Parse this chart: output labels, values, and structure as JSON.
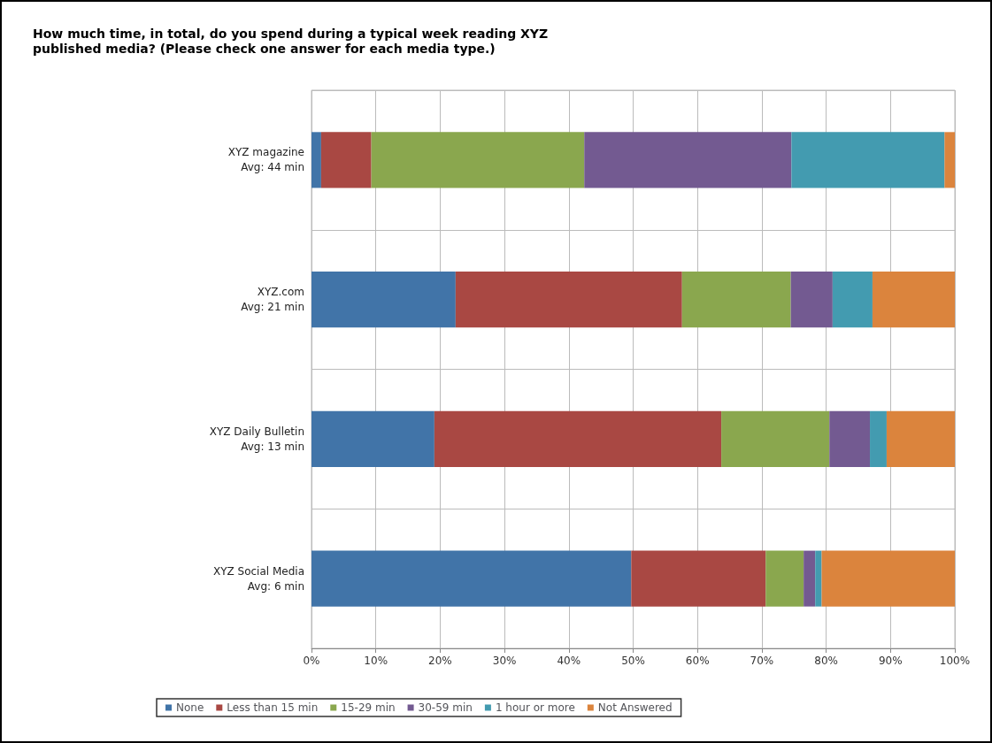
{
  "chart_data": {
    "type": "bar",
    "orientation": "horizontal",
    "stacked": true,
    "title": "How much time, in total, do you spend during a typical week reading XYZ\npublished media? (Please check one answer for each media type.)",
    "categories": [
      "XYZ magazine\nAvg: 44 min",
      "XYZ.com\nAvg: 21 min",
      "XYZ Daily Bulletin\nAvg: 13 min",
      "XYZ Social Media\nAvg: 6 min"
    ],
    "series": [
      {
        "name": "None",
        "color": "#4174a8",
        "values": [
          1.5,
          22.4,
          19.1,
          49.7
        ]
      },
      {
        "name": "Less than 15 min",
        "color": "#a94843",
        "values": [
          7.8,
          35.2,
          44.6,
          20.9
        ]
      },
      {
        "name": "15-29 min",
        "color": "#8aa74e",
        "values": [
          33.1,
          16.9,
          16.8,
          5.9
        ]
      },
      {
        "name": "30-59 min",
        "color": "#735a91",
        "values": [
          32.2,
          6.5,
          6.3,
          1.8
        ]
      },
      {
        "name": "1 hour or more",
        "color": "#439bb0",
        "values": [
          23.8,
          6.2,
          2.6,
          1.0
        ]
      },
      {
        "name": "Not Answered",
        "color": "#db843d",
        "values": [
          1.6,
          12.8,
          10.6,
          20.7
        ]
      }
    ],
    "xlim": [
      0,
      100
    ],
    "xticks": [
      {
        "value": 0,
        "label": "0%"
      },
      {
        "value": 10,
        "label": "10%"
      },
      {
        "value": 20,
        "label": "20%"
      },
      {
        "value": 30,
        "label": "30%"
      },
      {
        "value": 40,
        "label": "40%"
      },
      {
        "value": 50,
        "label": "50%"
      },
      {
        "value": 60,
        "label": "60%"
      },
      {
        "value": 70,
        "label": "70%"
      },
      {
        "value": 80,
        "label": "80%"
      },
      {
        "value": 90,
        "label": "90%"
      },
      {
        "value": 100,
        "label": "100%"
      }
    ],
    "grid": true,
    "legend": "bottom"
  }
}
